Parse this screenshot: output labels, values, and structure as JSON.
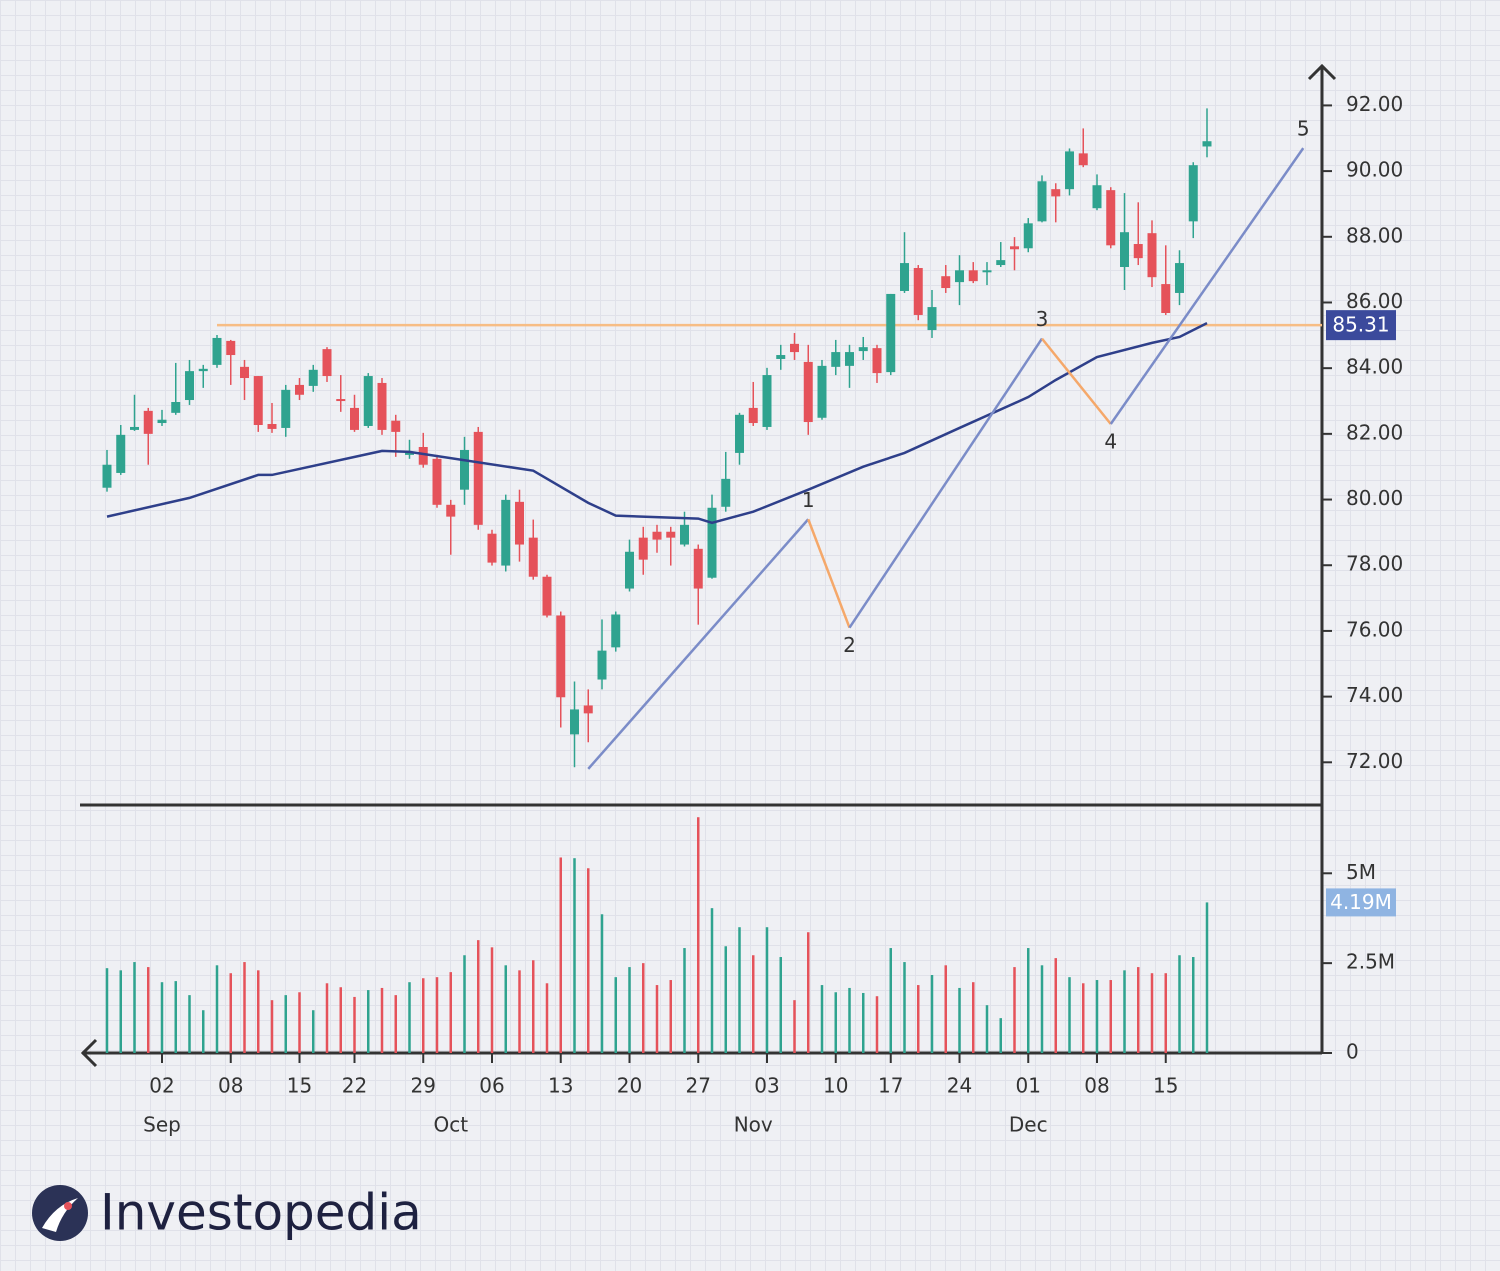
{
  "logo": "Investopedia",
  "chart_data": [
    {
      "type": "candlestick",
      "categories": [
        null,
        null,
        null,
        null,
        "02",
        null,
        null,
        null,
        null,
        "08",
        null,
        null,
        null,
        null,
        "15",
        null,
        null,
        null,
        "22",
        null,
        null,
        null,
        null,
        "29",
        null,
        null,
        null,
        null,
        "06",
        null,
        null,
        null,
        null,
        "13",
        null,
        null,
        null,
        null,
        "20",
        null,
        null,
        null,
        null,
        "27",
        null,
        null,
        null,
        null,
        "03",
        null,
        null,
        null,
        null,
        "10",
        null,
        null,
        null,
        "17",
        null,
        null,
        null,
        null,
        "24",
        null,
        null,
        null,
        null,
        "01",
        null,
        null,
        null,
        null,
        "08",
        null,
        null,
        null,
        null,
        "15",
        null,
        null,
        null
      ],
      "months": [
        null,
        null,
        null,
        null,
        "Sep",
        null,
        null,
        null,
        null,
        null,
        null,
        null,
        null,
        null,
        null,
        null,
        null,
        null,
        null,
        null,
        null,
        null,
        null,
        null,
        null,
        "Oct",
        null,
        null,
        null,
        null,
        null,
        null,
        null,
        null,
        null,
        null,
        null,
        null,
        null,
        null,
        null,
        null,
        null,
        null,
        null,
        null,
        null,
        "Nov",
        null,
        null,
        null,
        null,
        null,
        null,
        null,
        null,
        null,
        null,
        null,
        null,
        null,
        null,
        null,
        null,
        null,
        null,
        null,
        "Dec",
        null,
        null,
        null,
        null,
        null,
        null,
        null,
        null,
        null,
        null,
        null,
        null,
        null
      ],
      "open": [
        80.36,
        80.81,
        82.12,
        82.7,
        82.33,
        82.64,
        83.03,
        83.91,
        84.1,
        84.83,
        84.04,
        83.76,
        82.3,
        82.18,
        83.49,
        83.46,
        84.58,
        83.06,
        82.79,
        82.24,
        83.55,
        82.4,
        81.36,
        81.6,
        81.24,
        79.84,
        80.3,
        82.06,
        78.96,
        77.99,
        79.93,
        78.84,
        77.65,
        76.47,
        72.85,
        73.73,
        74.52,
        75.5,
        77.29,
        78.84,
        79.02,
        79.02,
        78.63,
        78.5,
        77.62,
        79.78,
        81.42,
        82.79,
        82.21,
        84.28,
        84.74,
        84.19,
        82.49,
        84.04,
        84.07,
        84.52,
        84.61,
        83.88,
        86.35,
        87.05,
        85.16,
        86.8,
        86.62,
        86.98,
        86.92,
        87.14,
        87.71,
        87.65,
        88.47,
        89.45,
        89.45,
        90.54,
        88.87,
        89.42,
        87.08,
        87.78,
        88.11,
        86.56,
        86.29,
        88.47,
        90.75
      ],
      "high": [
        81.51,
        82.27,
        83.19,
        82.79,
        82.73,
        84.16,
        84.25,
        84.1,
        85.01,
        84.86,
        84.25,
        83.76,
        82.94,
        83.49,
        83.7,
        84.1,
        84.64,
        83.79,
        83.19,
        83.85,
        83.7,
        82.58,
        81.82,
        82.03,
        81.36,
        79.99,
        81.91,
        82.21,
        79.08,
        80.15,
        80.3,
        79.39,
        77.71,
        76.59,
        74.46,
        74.22,
        76.35,
        76.59,
        78.78,
        79.17,
        79.23,
        79.17,
        79.63,
        78.63,
        80.15,
        81.45,
        82.64,
        83.58,
        84.01,
        84.71,
        85.07,
        84.71,
        84.25,
        84.86,
        84.71,
        84.95,
        84.71,
        86.26,
        88.14,
        87.14,
        86.38,
        87.14,
        87.44,
        87.23,
        87.23,
        87.84,
        87.99,
        88.57,
        89.87,
        89.63,
        90.69,
        91.3,
        89.9,
        89.51,
        89.33,
        89.05,
        88.5,
        87.74,
        87.59,
        90.27,
        91.91
      ],
      "low": [
        80.24,
        80.75,
        82.09,
        81.06,
        82.24,
        82.58,
        82.88,
        83.4,
        84.01,
        83.49,
        83.03,
        82.06,
        82.03,
        81.91,
        83.03,
        83.28,
        83.58,
        82.67,
        82.06,
        82.18,
        81.97,
        81.3,
        81.24,
        80.97,
        79.75,
        78.32,
        79.84,
        79.08,
        77.99,
        77.81,
        78.11,
        77.56,
        76.41,
        73.06,
        71.85,
        72.61,
        74.22,
        75.37,
        77.2,
        77.71,
        78.38,
        77.99,
        78.57,
        76.19,
        77.59,
        79.63,
        81.06,
        82.24,
        82.12,
        83.95,
        84.25,
        81.97,
        82.43,
        83.79,
        83.4,
        84.25,
        83.55,
        83.79,
        86.29,
        85.46,
        84.92,
        86.29,
        85.92,
        86.59,
        86.53,
        87.08,
        86.98,
        87.53,
        88.44,
        88.44,
        89.26,
        90.12,
        88.81,
        87.65,
        86.38,
        87.14,
        86.47,
        85.62,
        85.92,
        87.96,
        90.42
      ],
      "close": [
        81.06,
        81.97,
        82.21,
        82.0,
        82.43,
        82.97,
        83.91,
        83.98,
        84.92,
        84.4,
        83.7,
        82.27,
        82.15,
        83.34,
        83.19,
        83.95,
        83.76,
        83.0,
        82.12,
        83.76,
        82.12,
        82.06,
        81.45,
        81.06,
        79.84,
        79.48,
        81.51,
        79.23,
        78.08,
        79.99,
        78.63,
        77.65,
        76.47,
        73.98,
        73.61,
        73.49,
        75.4,
        76.5,
        78.41,
        78.17,
        78.78,
        78.84,
        79.23,
        77.29,
        79.75,
        80.63,
        82.58,
        82.33,
        83.79,
        84.4,
        84.49,
        82.36,
        84.07,
        84.49,
        84.49,
        84.64,
        83.85,
        86.26,
        87.2,
        85.62,
        85.86,
        86.44,
        86.98,
        86.65,
        86.98,
        87.29,
        87.62,
        88.41,
        89.69,
        89.23,
        90.6,
        90.18,
        89.57,
        87.74,
        88.14,
        87.35,
        86.77,
        85.68,
        87.2,
        90.18,
        90.91
      ],
      "up_color": "#2fa38f",
      "down_color": "#e5525a",
      "ylim": [
        70.7,
        93.2
      ],
      "yticks": [
        {
          "value": 72,
          "label": "72.00"
        },
        {
          "value": 74,
          "label": "74.00"
        },
        {
          "value": 76,
          "label": "76.00"
        },
        {
          "value": 78,
          "label": "78.00"
        },
        {
          "value": 80,
          "label": "80.00"
        },
        {
          "value": 82,
          "label": "82.00"
        },
        {
          "value": 84,
          "label": "84.00"
        },
        {
          "value": 86,
          "label": "86.00"
        },
        {
          "value": 88,
          "label": "88.00"
        },
        {
          "value": 90,
          "label": "90.00"
        },
        {
          "value": 92,
          "label": "92.00"
        }
      ],
      "moving_average": {
        "color": "#2e3f8a",
        "x": [
          0,
          6,
          11,
          12,
          20,
          22,
          31,
          35,
          37,
          43,
          44,
          47,
          51,
          55,
          58,
          62,
          67,
          69,
          72,
          76,
          78,
          80
        ],
        "values": [
          79.48,
          80.05,
          80.75,
          80.75,
          81.48,
          81.45,
          80.88,
          79.9,
          79.51,
          79.42,
          79.29,
          79.63,
          80.3,
          81.0,
          81.42,
          82.18,
          83.12,
          83.64,
          84.34,
          84.77,
          84.95,
          85.37
        ]
      },
      "waves": {
        "impulse_color": "#7b8cc8",
        "corrective_color": "#f5a86a",
        "x": [
          35,
          51,
          54,
          68,
          73,
          87
        ],
        "values": [
          71.8,
          79.4,
          76.1,
          84.9,
          82.3,
          90.7
        ],
        "labels": [
          null,
          "1",
          "2",
          "3",
          "4",
          "5"
        ]
      },
      "resistance": {
        "value": 85.31,
        "start": 8,
        "color": "#f7bd84",
        "box_color": "#3b4a9c"
      }
    },
    {
      "type": "bar",
      "values": [
        2.36,
        2.3,
        2.53,
        2.39,
        1.97,
        2.0,
        1.61,
        1.19,
        2.44,
        2.22,
        2.53,
        2.3,
        1.47,
        1.61,
        1.69,
        1.19,
        1.94,
        1.83,
        1.56,
        1.75,
        1.81,
        1.61,
        1.97,
        2.08,
        2.11,
        2.25,
        2.72,
        3.14,
        2.94,
        2.44,
        2.3,
        2.58,
        1.94,
        5.44,
        5.42,
        5.14,
        3.86,
        2.11,
        2.39,
        2.5,
        1.89,
        2.03,
        2.92,
        6.56,
        4.03,
        2.97,
        3.5,
        2.72,
        3.5,
        2.67,
        1.47,
        3.36,
        1.89,
        1.69,
        1.81,
        1.67,
        1.58,
        2.92,
        2.53,
        1.89,
        2.17,
        2.44,
        1.81,
        1.97,
        1.33,
        0.97,
        2.39,
        2.92,
        2.44,
        2.64,
        2.11,
        1.94,
        2.03,
        2.03,
        2.3,
        2.39,
        2.22,
        2.22,
        2.72,
        2.67,
        4.19
      ],
      "value_labels": [
        null,
        null,
        null,
        null,
        null,
        null,
        null,
        null,
        null,
        null,
        null,
        null,
        null,
        null,
        null,
        null,
        null,
        null,
        null,
        null,
        null,
        null,
        null,
        null,
        null,
        null,
        null,
        null,
        null,
        null,
        null,
        null,
        null,
        null,
        null,
        null,
        null,
        null,
        null,
        null,
        null,
        null,
        null,
        null,
        null,
        null,
        null,
        null,
        null,
        null,
        null,
        null,
        null,
        null,
        null,
        null,
        null,
        null,
        null,
        null,
        null,
        null,
        null,
        null,
        null,
        null,
        null,
        null,
        null,
        null,
        null,
        null,
        null,
        null,
        null,
        null,
        null,
        null,
        null,
        null,
        "4.19M"
      ],
      "label_color": "#8fb4e2",
      "ylim": [
        0,
        6.9
      ],
      "yticks": [
        0,
        {
          "value": 2.5,
          "label": "2.5M"
        },
        {
          "value": 5,
          "label": "5M"
        }
      ]
    }
  ]
}
